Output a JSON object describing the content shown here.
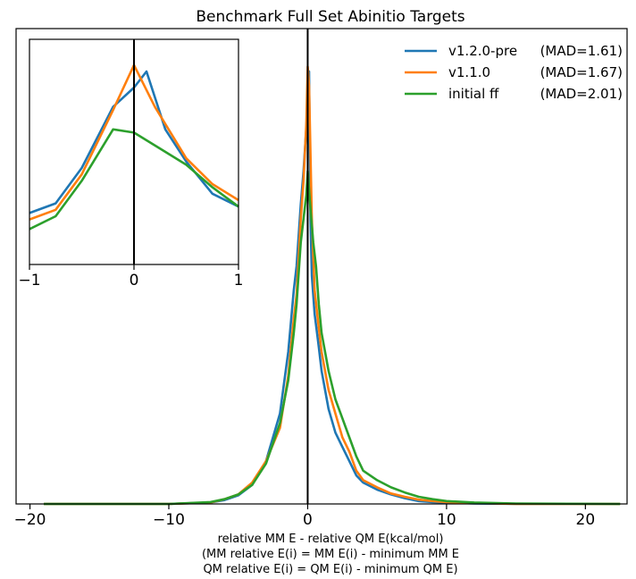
{
  "chart_data": [
    {
      "type": "line",
      "title": "Benchmark Full Set Abinitio Targets",
      "xlabel_lines": [
        "relative MM E - relative QM E(kcal/mol)",
        "(MM relative E(i) = MM E(i) - minimum MM E",
        "QM relative E(i) = QM E(i) - minimum QM E)"
      ],
      "ylabel": "",
      "xlim": [
        -21,
        23
      ],
      "ylim": [
        0,
        1.0
      ],
      "xticks": [
        -20,
        -10,
        0,
        10,
        20
      ],
      "xtick_labels": [
        "−20",
        "−10",
        "0",
        "10",
        "20"
      ],
      "yticks_visible": false,
      "grid": false,
      "vline_x": 0,
      "legend": {
        "placement": "top-right",
        "entries": [
          {
            "label": "v1.2.0-pre",
            "mad": "(MAD=1.61)",
            "color": "#1f77b4"
          },
          {
            "label": "v1.1.0",
            "mad": "(MAD=1.67)",
            "color": "#ff7f0e"
          },
          {
            "label": "initial ff",
            "mad": "(MAD=2.01)",
            "color": "#2ca02c"
          }
        ]
      },
      "series": [
        {
          "name": "v1.2.0-pre",
          "color": "#1f77b4",
          "points": [
            [
              -19,
              0.0
            ],
            [
              -10,
              0.0
            ],
            [
              -7,
              0.003
            ],
            [
              -6,
              0.008
            ],
            [
              -5,
              0.018
            ],
            [
              -4,
              0.04
            ],
            [
              -3,
              0.09
            ],
            [
              -2,
              0.19
            ],
            [
              -1.4,
              0.32
            ],
            [
              -1,
              0.45
            ],
            [
              -0.8,
              0.5
            ],
            [
              -0.5,
              0.63
            ],
            [
              -0.3,
              0.7
            ],
            [
              -0.1,
              0.79
            ],
            [
              0.1,
              0.91
            ],
            [
              0.2,
              0.6
            ],
            [
              0.3,
              0.48
            ],
            [
              0.5,
              0.4
            ],
            [
              0.8,
              0.33
            ],
            [
              1,
              0.28
            ],
            [
              1.5,
              0.2
            ],
            [
              2,
              0.15
            ],
            [
              2.5,
              0.12
            ],
            [
              3,
              0.09
            ],
            [
              3.5,
              0.06
            ],
            [
              4,
              0.045
            ],
            [
              5,
              0.03
            ],
            [
              6,
              0.02
            ],
            [
              7,
              0.012
            ],
            [
              8,
              0.006
            ],
            [
              9,
              0.004
            ],
            [
              10,
              0.003
            ],
            [
              12,
              0.001
            ],
            [
              15,
              0.0
            ],
            [
              22.5,
              0.0
            ]
          ]
        },
        {
          "name": "v1.1.0",
          "color": "#ff7f0e",
          "points": [
            [
              -19,
              0.0
            ],
            [
              -10,
              0.0
            ],
            [
              -7,
              0.003
            ],
            [
              -6,
              0.01
            ],
            [
              -5,
              0.02
            ],
            [
              -4,
              0.045
            ],
            [
              -3,
              0.09
            ],
            [
              -2,
              0.16
            ],
            [
              -1.4,
              0.27
            ],
            [
              -1,
              0.39
            ],
            [
              -0.8,
              0.44
            ],
            [
              -0.5,
              0.6
            ],
            [
              -0.3,
              0.68
            ],
            [
              -0.1,
              0.8
            ],
            [
              0.0,
              0.92
            ],
            [
              0.1,
              0.88
            ],
            [
              0.3,
              0.6
            ],
            [
              0.5,
              0.45
            ],
            [
              0.8,
              0.37
            ],
            [
              1,
              0.32
            ],
            [
              1.5,
              0.24
            ],
            [
              2,
              0.19
            ],
            [
              2.5,
              0.14
            ],
            [
              3,
              0.11
            ],
            [
              3.5,
              0.07
            ],
            [
              4,
              0.05
            ],
            [
              5,
              0.035
            ],
            [
              6,
              0.022
            ],
            [
              7,
              0.015
            ],
            [
              8,
              0.009
            ],
            [
              9,
              0.006
            ],
            [
              10,
              0.004
            ],
            [
              12,
              0.002
            ],
            [
              15,
              0.0
            ],
            [
              22.5,
              0.0
            ]
          ]
        },
        {
          "name": "initial ff",
          "color": "#2ca02c",
          "points": [
            [
              -19,
              0.0
            ],
            [
              -10,
              0.0
            ],
            [
              -7,
              0.004
            ],
            [
              -6,
              0.01
            ],
            [
              -5,
              0.02
            ],
            [
              -4,
              0.04
            ],
            [
              -3,
              0.085
            ],
            [
              -2,
              0.17
            ],
            [
              -1.4,
              0.26
            ],
            [
              -1,
              0.36
            ],
            [
              -0.8,
              0.42
            ],
            [
              -0.5,
              0.55
            ],
            [
              -0.3,
              0.6
            ],
            [
              -0.1,
              0.65
            ],
            [
              0.0,
              0.7
            ],
            [
              0.2,
              0.62
            ],
            [
              0.4,
              0.55
            ],
            [
              0.6,
              0.5
            ],
            [
              0.8,
              0.42
            ],
            [
              1,
              0.36
            ],
            [
              1.5,
              0.28
            ],
            [
              2,
              0.22
            ],
            [
              2.5,
              0.18
            ],
            [
              3,
              0.14
            ],
            [
              3.5,
              0.1
            ],
            [
              4,
              0.07
            ],
            [
              5,
              0.05
            ],
            [
              6,
              0.035
            ],
            [
              7,
              0.024
            ],
            [
              8,
              0.015
            ],
            [
              9,
              0.01
            ],
            [
              10,
              0.006
            ],
            [
              12,
              0.003
            ],
            [
              15,
              0.001
            ],
            [
              22.5,
              0.0
            ]
          ]
        }
      ]
    },
    {
      "type": "line",
      "role": "inset",
      "xlim": [
        -1,
        1
      ],
      "ylim": [
        0.3,
        1.0
      ],
      "xticks": [
        -1,
        0,
        1
      ],
      "xtick_labels": [
        "−1",
        "0",
        "1"
      ],
      "yticks_visible": false,
      "vline_x": 0,
      "series": [
        {
          "name": "v1.2.0-pre",
          "color": "#1f77b4",
          "points": [
            [
              -1,
              0.46
            ],
            [
              -0.75,
              0.49
            ],
            [
              -0.5,
              0.6
            ],
            [
              -0.2,
              0.79
            ],
            [
              0.0,
              0.85
            ],
            [
              0.12,
              0.9
            ],
            [
              0.3,
              0.72
            ],
            [
              0.5,
              0.62
            ],
            [
              0.75,
              0.52
            ],
            [
              1,
              0.48
            ]
          ]
        },
        {
          "name": "v1.1.0",
          "color": "#ff7f0e",
          "points": [
            [
              -1,
              0.44
            ],
            [
              -0.75,
              0.47
            ],
            [
              -0.5,
              0.58
            ],
            [
              -0.2,
              0.78
            ],
            [
              0.0,
              0.92
            ],
            [
              0.2,
              0.79
            ],
            [
              0.5,
              0.63
            ],
            [
              0.75,
              0.55
            ],
            [
              1,
              0.5
            ]
          ]
        },
        {
          "name": "initial ff",
          "color": "#2ca02c",
          "points": [
            [
              -1,
              0.41
            ],
            [
              -0.75,
              0.45
            ],
            [
              -0.5,
              0.56
            ],
            [
              -0.2,
              0.72
            ],
            [
              0.0,
              0.71
            ],
            [
              0.25,
              0.66
            ],
            [
              0.5,
              0.61
            ],
            [
              0.75,
              0.54
            ],
            [
              1,
              0.48
            ]
          ]
        }
      ]
    }
  ]
}
